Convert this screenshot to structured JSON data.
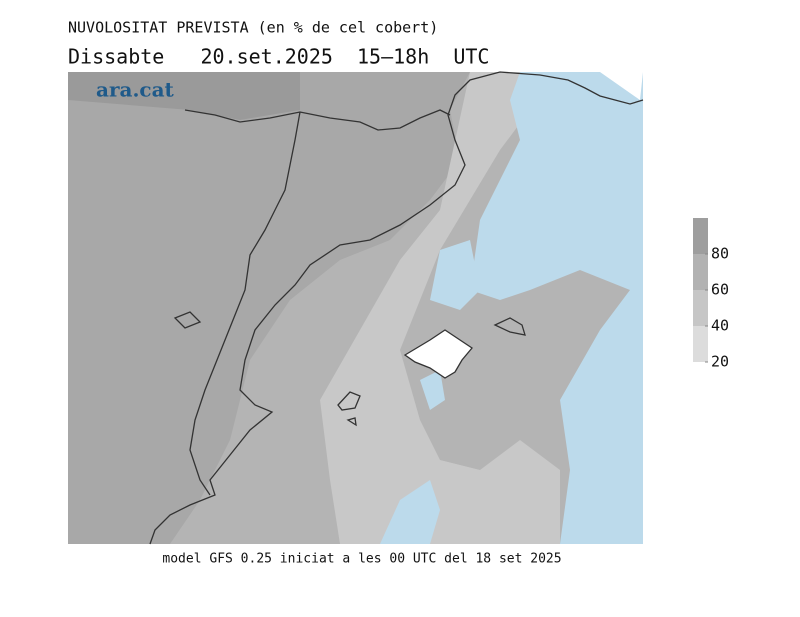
{
  "header": {
    "title": "NUVOLOSITAT PREVISTA (en % de cel cobert)",
    "subtitle": "Dissabte   20.set.2025  15–18h  UTC"
  },
  "logo": "ara.cat",
  "colorbar": {
    "range": [
      20,
      100
    ],
    "ticks": [
      20,
      40,
      60,
      80
    ],
    "colors": [
      "#dcdcdc",
      "#c6c6c6",
      "#b2b2b2",
      "#9e9e9e"
    ]
  },
  "footer": "model GFS 0.25 iniciat a les 00 UTC del 18 set 2025"
}
